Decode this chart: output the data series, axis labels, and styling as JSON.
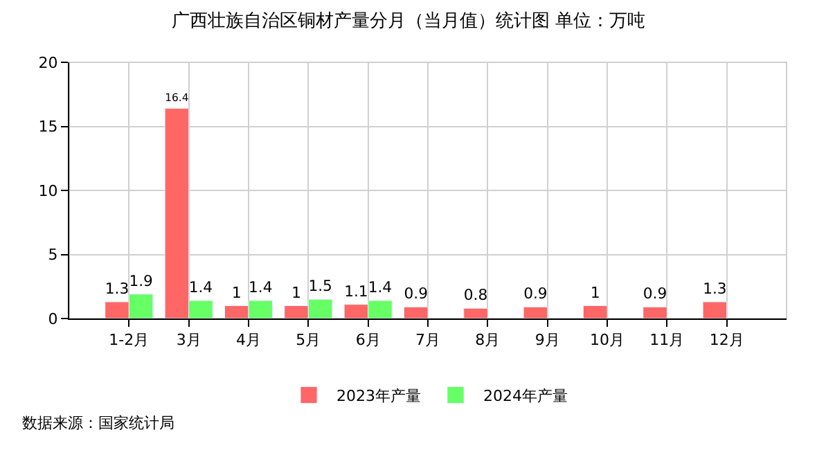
{
  "chart_data": {
    "type": "bar",
    "title": "广西壮族自治区铜材产量分月（当月值）统计图 单位：万吨",
    "categories": [
      "1-2月",
      "3月",
      "4月",
      "5月",
      "6月",
      "7月",
      "8月",
      "9月",
      "10月",
      "11月",
      "12月"
    ],
    "series": [
      {
        "name": "2023年产量",
        "color": "#ff6666",
        "values": [
          1.3,
          16.4,
          1,
          1,
          1.1,
          0.9,
          0.8,
          0.9,
          1,
          0.9,
          1.3
        ]
      },
      {
        "name": "2024年产量",
        "color": "#66ff66",
        "values": [
          1.9,
          1.4,
          1.4,
          1.5,
          1.4,
          null,
          null,
          null,
          null,
          null,
          null
        ]
      }
    ],
    "ylim": [
      0,
      20
    ],
    "yticks": [
      0,
      5,
      10,
      15,
      20
    ],
    "grid": true,
    "legend": "bottom",
    "data_labels": true,
    "annotations": [
      "数据来源：国家统计局"
    ]
  }
}
